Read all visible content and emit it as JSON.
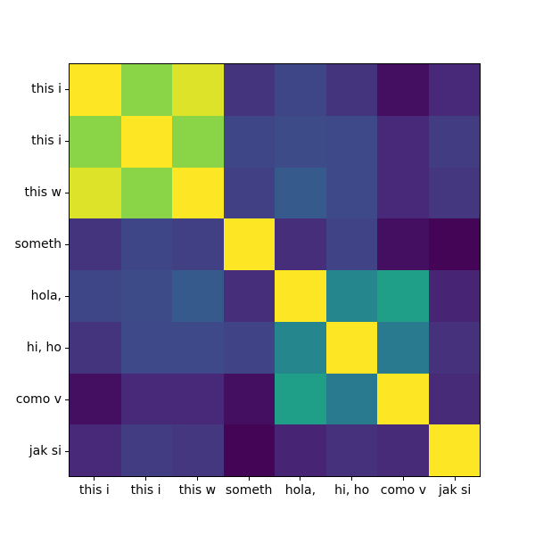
{
  "figure": {
    "background": "#ffffff",
    "text_color": "#000000",
    "spine_color": "#000000"
  },
  "chart_data": {
    "type": "heatmap",
    "title": "",
    "xlabel": "",
    "ylabel": "",
    "grid": false,
    "legend": null,
    "colormap": "viridis",
    "vmin": 0,
    "vmax": 1,
    "x_labels": [
      "this i",
      "this i",
      "this w",
      "someth",
      "hola,",
      "hi, ho",
      "como v",
      "jak si"
    ],
    "y_labels": [
      "this i",
      "this i",
      "this w",
      "someth",
      "hola,",
      "hi, ho",
      "como v",
      "jak si"
    ],
    "matrix": [
      [
        1.0,
        0.82,
        0.95,
        0.15,
        0.21,
        0.15,
        0.04,
        0.11
      ],
      [
        0.82,
        1.0,
        0.82,
        0.21,
        0.23,
        0.22,
        0.11,
        0.18
      ],
      [
        0.95,
        0.82,
        1.0,
        0.19,
        0.28,
        0.22,
        0.11,
        0.16
      ],
      [
        0.15,
        0.21,
        0.19,
        1.0,
        0.13,
        0.2,
        0.04,
        0.01
      ],
      [
        0.21,
        0.23,
        0.28,
        0.13,
        1.0,
        0.46,
        0.56,
        0.1
      ],
      [
        0.15,
        0.22,
        0.22,
        0.2,
        0.46,
        1.0,
        0.41,
        0.14
      ],
      [
        0.04,
        0.11,
        0.11,
        0.04,
        0.56,
        0.41,
        1.0,
        0.12
      ],
      [
        0.11,
        0.18,
        0.16,
        0.01,
        0.1,
        0.14,
        0.12,
        1.0
      ]
    ],
    "colormap_stops": [
      {
        "t": 0.0,
        "color": "#440154"
      },
      {
        "t": 0.111,
        "color": "#482878"
      },
      {
        "t": 0.222,
        "color": "#3e4a89"
      },
      {
        "t": 0.333,
        "color": "#31688e"
      },
      {
        "t": 0.444,
        "color": "#26828e"
      },
      {
        "t": 0.556,
        "color": "#1f9e89"
      },
      {
        "t": 0.667,
        "color": "#36b779"
      },
      {
        "t": 0.778,
        "color": "#6ece58"
      },
      {
        "t": 0.889,
        "color": "#b5de2b"
      },
      {
        "t": 1.0,
        "color": "#fde725"
      }
    ]
  }
}
